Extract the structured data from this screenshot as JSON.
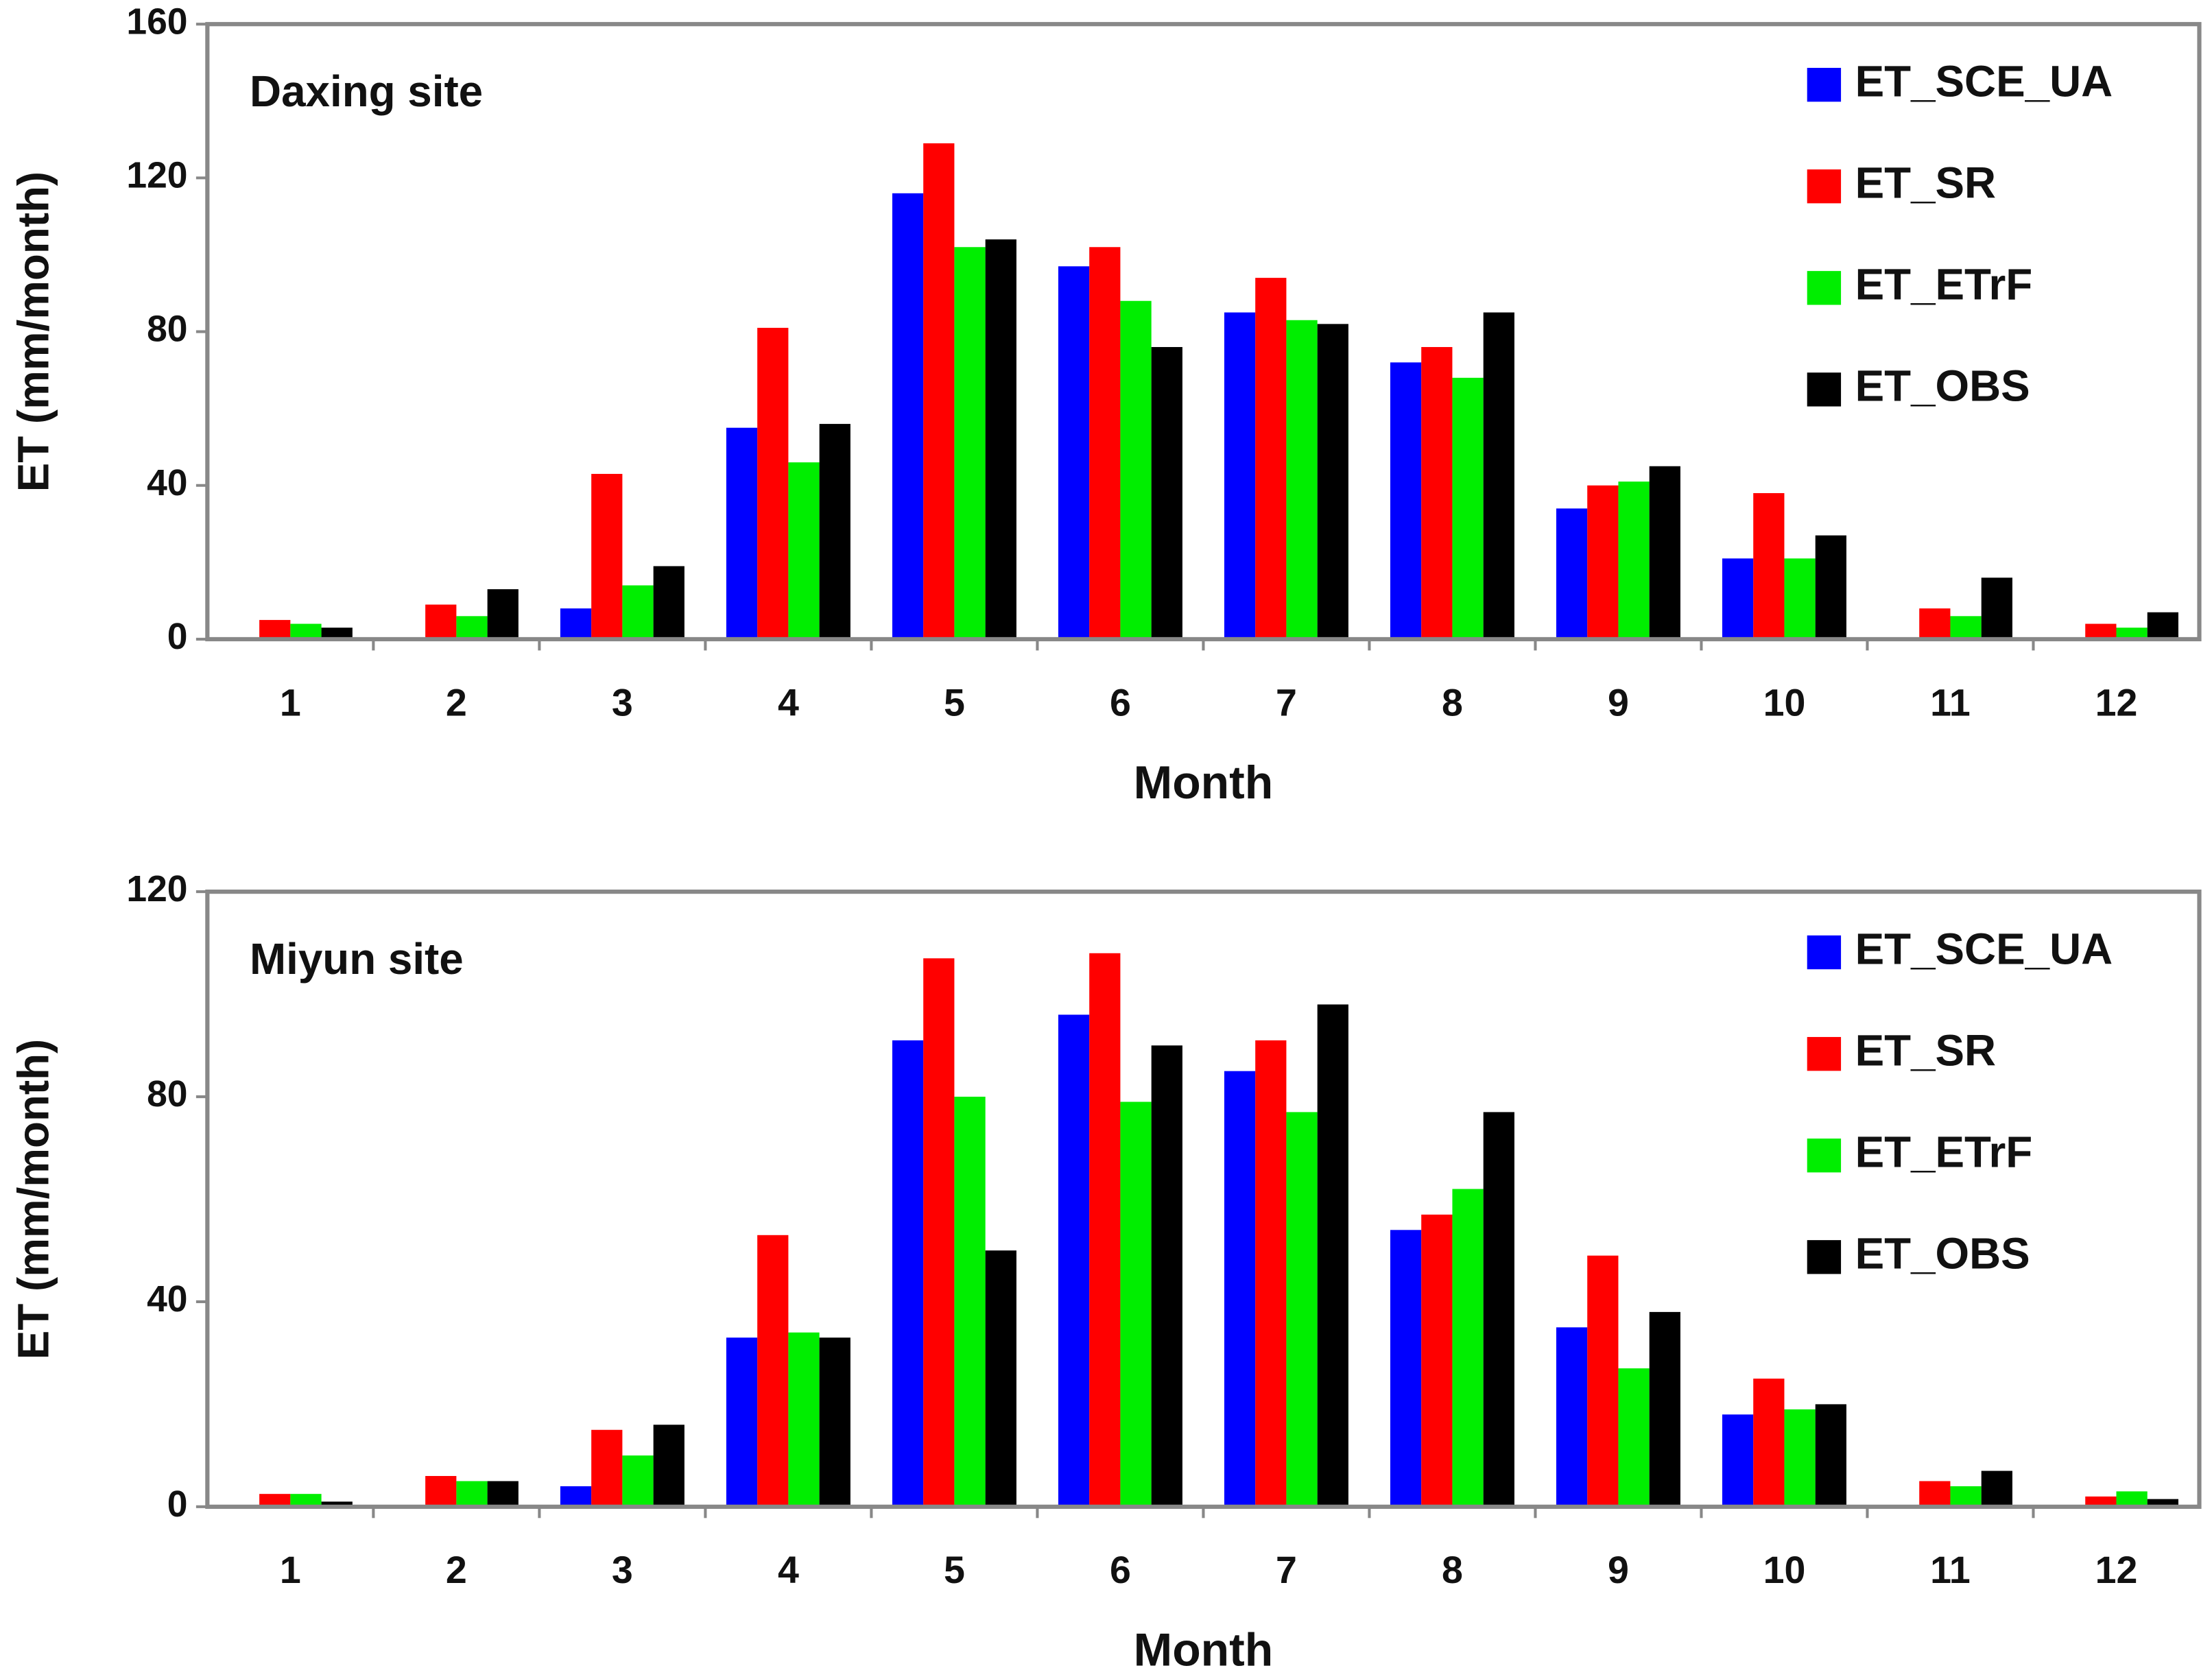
{
  "chart_data": [
    {
      "type": "bar",
      "annotation": "Daxing site",
      "xlabel": "Month",
      "ylabel": "ET (mm/month)",
      "categories": [
        "1",
        "2",
        "3",
        "4",
        "5",
        "6",
        "7",
        "8",
        "9",
        "10",
        "11",
        "12"
      ],
      "series": [
        {
          "name": "ET_SCE_UA",
          "color": "#0000ff",
          "values": [
            0.5,
            0.5,
            8,
            55,
            116,
            97,
            85,
            72,
            34,
            21,
            0.5,
            0.5
          ]
        },
        {
          "name": "ET_SR",
          "color": "#ff0000",
          "values": [
            5,
            9,
            43,
            81,
            129,
            102,
            94,
            76,
            40,
            38,
            8,
            4
          ]
        },
        {
          "name": "ET_ETrF",
          "color": "#00ee00",
          "values": [
            4,
            6,
            14,
            46,
            102,
            88,
            83,
            68,
            41,
            21,
            6,
            3
          ]
        },
        {
          "name": "ET_OBS",
          "color": "#000000",
          "values": [
            3,
            13,
            19,
            56,
            104,
            76,
            82,
            85,
            45,
            27,
            16,
            7
          ]
        }
      ],
      "ylim": [
        0,
        160
      ],
      "yticks": [
        0,
        40,
        80,
        120,
        160
      ],
      "grid": false,
      "legend": "upper right"
    },
    {
      "type": "bar",
      "annotation": "Miyun site",
      "xlabel": "Month",
      "ylabel": "ET (mm/month)",
      "categories": [
        "1",
        "2",
        "3",
        "4",
        "5",
        "6",
        "7",
        "8",
        "9",
        "10",
        "11",
        "12"
      ],
      "series": [
        {
          "name": "ET_SCE_UA",
          "color": "#0000ff",
          "values": [
            0.3,
            0.3,
            4,
            33,
            91,
            96,
            85,
            54,
            35,
            18,
            0.3,
            0.3
          ]
        },
        {
          "name": "ET_SR",
          "color": "#ff0000",
          "values": [
            2.5,
            6,
            15,
            53,
            107,
            108,
            91,
            57,
            49,
            25,
            5,
            2
          ]
        },
        {
          "name": "ET_ETrF",
          "color": "#00ee00",
          "values": [
            2.5,
            5,
            10,
            34,
            80,
            79,
            77,
            62,
            27,
            19,
            4,
            3
          ]
        },
        {
          "name": "ET_OBS",
          "color": "#000000",
          "values": [
            1,
            5,
            16,
            33,
            50,
            90,
            98,
            77,
            38,
            20,
            7,
            1.5
          ]
        }
      ],
      "ylim": [
        0,
        120
      ],
      "yticks": [
        0,
        40,
        80,
        120
      ],
      "grid": false,
      "legend": "upper right"
    }
  ]
}
